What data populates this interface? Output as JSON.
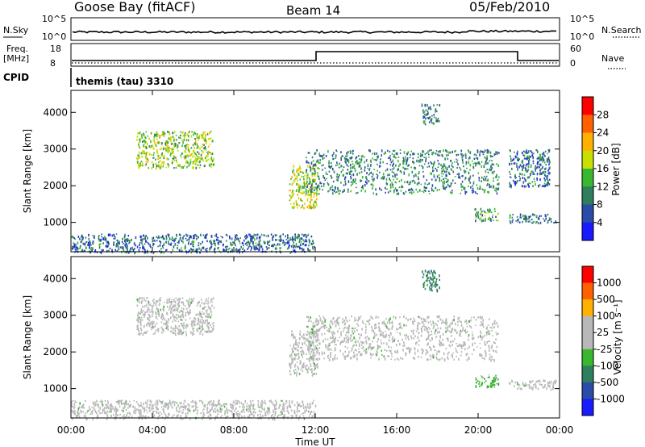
{
  "header": {
    "station": "Goose Bay (fitACF)",
    "beam": "Beam 14",
    "date": "05/Feb/2010"
  },
  "noise_panel": {
    "left_label": "N.Sky",
    "left_ticks": [
      "10^5",
      "10^0"
    ],
    "right_label": "N.Search",
    "right_ticks": [
      "10^5",
      "10^0"
    ]
  },
  "freq_panel": {
    "left_label_1": "Freq.",
    "left_label_2": "[MHz]",
    "left_ticks": [
      "18",
      "8"
    ],
    "right_label": "Nave",
    "right_ticks": [
      "60",
      "0"
    ]
  },
  "cpid": {
    "label": "CPID",
    "value": "themis (tau) 3310"
  },
  "time_axis": {
    "label": "Time UT",
    "ticks": [
      "00:00",
      "04:00",
      "08:00",
      "12:00",
      "16:00",
      "20:00",
      "00:00"
    ]
  },
  "power_colorbar": {
    "label": "Power [dB]",
    "ticks": [
      "4",
      "8",
      "12",
      "16",
      "20",
      "24",
      "28"
    ],
    "colors": [
      "#1a1aff",
      "#2b4ba8",
      "#2f7f5f",
      "#39b82f",
      "#c8e000",
      "#ffb000",
      "#ff6000",
      "#ff0000"
    ]
  },
  "velocity_colorbar": {
    "label": "Velocity [m s⁻¹]",
    "ticks": [
      "1000",
      "500",
      "100",
      "25",
      "-25",
      "-100",
      "-500",
      "-1000"
    ],
    "colors": [
      "#1a1aff",
      "#2b4ba8",
      "#2f7f5f",
      "#39b82f",
      "#b8b8b8",
      "#b8b8b8",
      "#ffb000",
      "#ff6000",
      "#ff0000"
    ]
  },
  "chart_data": [
    {
      "type": "heatmap",
      "title": "",
      "ylabel": "Slant Range [km]",
      "xlabel": "Time UT",
      "xlim": [
        0,
        24
      ],
      "ylim": [
        200,
        4600
      ],
      "yticks": [
        1000,
        2000,
        3000,
        4000
      ],
      "value_label": "Power [dB]",
      "regions": [
        {
          "t": [
            3.2,
            7.0
          ],
          "r": [
            2500,
            3500
          ],
          "level": 14
        },
        {
          "t": [
            10.7,
            12.1
          ],
          "r": [
            1400,
            2600
          ],
          "level": 16
        },
        {
          "t": [
            11.5,
            21.0
          ],
          "r": [
            1800,
            3000
          ],
          "level": 8
        },
        {
          "t": [
            17.2,
            18.1
          ],
          "r": [
            3700,
            4250
          ],
          "level": 8
        },
        {
          "t": [
            19.8,
            21.0
          ],
          "r": [
            1050,
            1400
          ],
          "level": 10
        },
        {
          "t": [
            21.5,
            23.8
          ],
          "r": [
            1000,
            1250
          ],
          "level": 6
        },
        {
          "t": [
            21.5,
            23.5
          ],
          "r": [
            2000,
            3000
          ],
          "level": 6
        },
        {
          "t": [
            0,
            12
          ],
          "r": [
            200,
            700
          ],
          "level": 6
        }
      ]
    },
    {
      "type": "heatmap",
      "title": "",
      "ylabel": "Slant Range [km]",
      "xlabel": "Time UT",
      "xlim": [
        0,
        24
      ],
      "ylim": [
        200,
        4600
      ],
      "yticks": [
        1000,
        2000,
        3000,
        4000
      ],
      "value_label": "Velocity [m s-1]",
      "regions": [
        {
          "t": [
            3.2,
            7.0
          ],
          "r": [
            2500,
            3500
          ],
          "velocity": 0
        },
        {
          "t": [
            10.7,
            12.1
          ],
          "r": [
            1400,
            2600
          ],
          "velocity": 0
        },
        {
          "t": [
            11.5,
            21.0
          ],
          "r": [
            1800,
            3000
          ],
          "velocity": 0
        },
        {
          "t": [
            17.2,
            18.1
          ],
          "r": [
            3700,
            4250
          ],
          "velocity": 150
        },
        {
          "t": [
            19.8,
            21.0
          ],
          "r": [
            1050,
            1400
          ],
          "velocity": 60
        },
        {
          "t": [
            21.5,
            23.8
          ],
          "r": [
            1000,
            1250
          ],
          "velocity": 0
        },
        {
          "t": [
            0,
            12
          ],
          "r": [
            200,
            700
          ],
          "velocity": 0
        }
      ]
    }
  ]
}
